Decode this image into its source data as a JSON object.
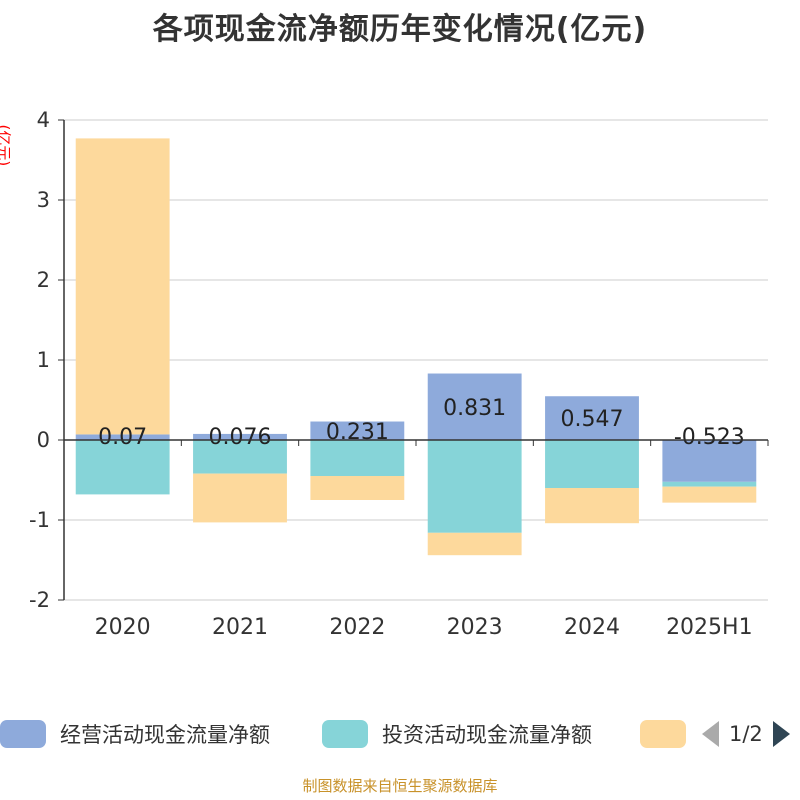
{
  "title": "各项现金流净额历年变化情况(亿元)",
  "y_unit": "(亿元)",
  "footer": "制图数据来自恒生聚源数据库",
  "legend": {
    "items": [
      {
        "label": "经营活动现金流量净额",
        "color": "#8eaadb"
      },
      {
        "label": "投资活动现金流量净额",
        "color": "#86d4d8"
      },
      {
        "label": "",
        "color": "#fdd99c"
      }
    ],
    "page": "1/2"
  },
  "chart_data": {
    "type": "bar",
    "stacked": true,
    "categories": [
      "2020",
      "2021",
      "2022",
      "2023",
      "2024",
      "2025H1"
    ],
    "ylim": [
      -2,
      4
    ],
    "yticks": [
      -2,
      -1,
      0,
      1,
      2,
      3,
      4
    ],
    "grid": true,
    "legend_position": "bottom",
    "series": [
      {
        "name": "经营活动现金流量净额",
        "color": "#8eaadb",
        "values": [
          0.07,
          0.076,
          0.231,
          0.831,
          0.547,
          -0.523
        ],
        "labels": [
          "0.07",
          "0.076",
          "0.231",
          "0.831",
          "0.547",
          "-0.523"
        ]
      },
      {
        "name": "投资活动现金流量净额",
        "color": "#86d4d8",
        "values": [
          -0.68,
          -0.42,
          -0.45,
          -1.16,
          -0.6,
          -0.06
        ]
      },
      {
        "color": "#fdd99c",
        "values": [
          3.7,
          -0.61,
          -0.3,
          -0.28,
          -0.44,
          -0.2
        ]
      }
    ]
  }
}
